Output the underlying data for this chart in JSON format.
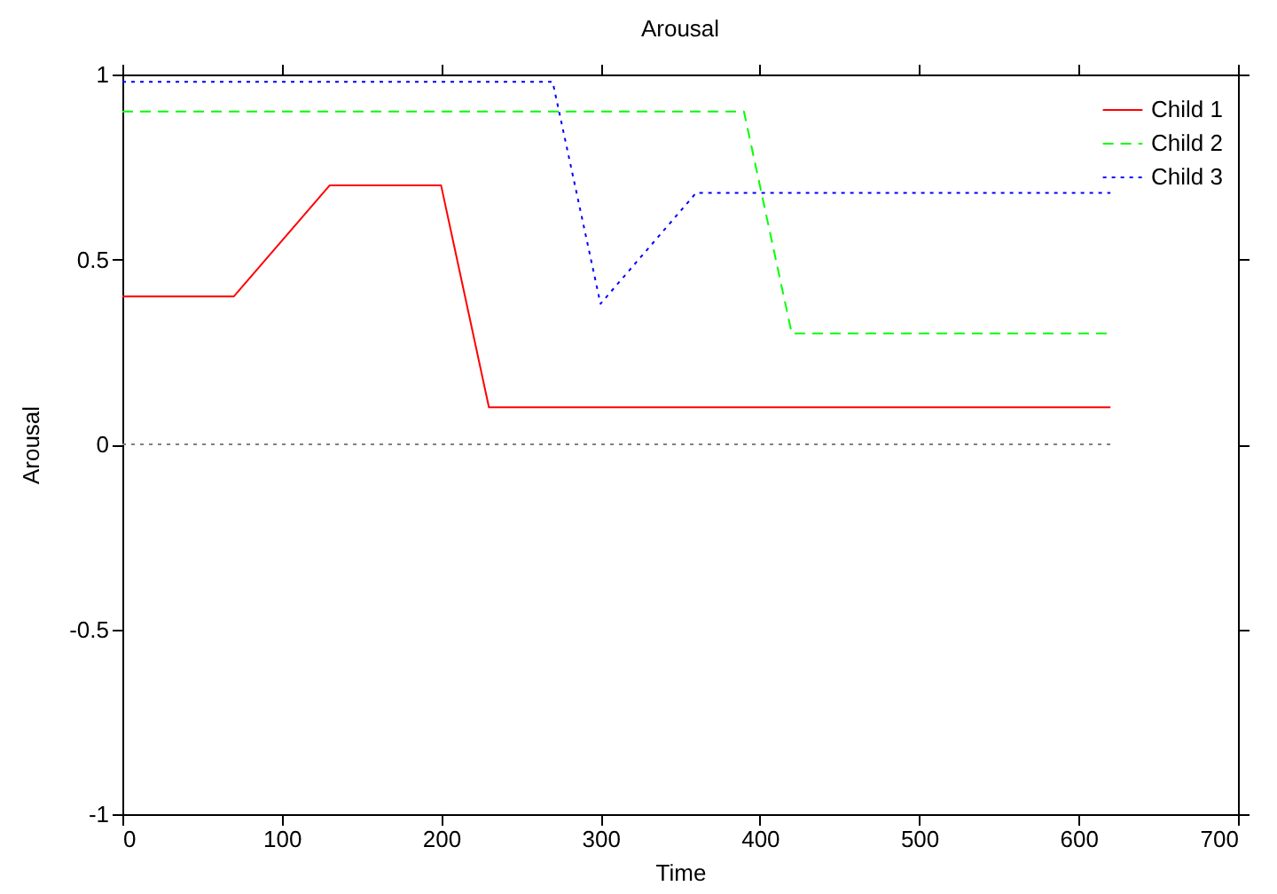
{
  "chart_data": {
    "type": "line",
    "title": "Arousal",
    "xlabel": "Time",
    "ylabel": "Arousal",
    "xlim": [
      0,
      700
    ],
    "xticks": [
      0,
      100,
      200,
      300,
      400,
      500,
      600,
      700
    ],
    "ylim": [
      -1,
      1
    ],
    "yticks": [
      -1,
      -0.5,
      0,
      0.5,
      1
    ],
    "grid": false,
    "legend": "top right",
    "series": [
      {
        "name": "Child 1",
        "color": "#ff0000",
        "line_style": "solid",
        "x": [
          0,
          70,
          130,
          200,
          230,
          620
        ],
        "values": [
          0.4,
          0.4,
          0.7,
          0.7,
          0.1,
          0.1
        ]
      },
      {
        "name": "Child 2",
        "color": "#00ff00",
        "line_style": "dashed",
        "x": [
          0,
          390,
          420,
          620
        ],
        "values": [
          0.9,
          0.9,
          0.3,
          0.3
        ]
      },
      {
        "name": "Child 3",
        "color": "#0000ff",
        "line_style": "dotted",
        "x": [
          0,
          270,
          300,
          360,
          620
        ],
        "values": [
          0.98,
          0.98,
          0.38,
          0.68,
          0.68
        ]
      },
      {
        "color": "#808080",
        "line_style": "dotted",
        "x": [
          0,
          620
        ],
        "values": [
          0,
          0
        ]
      }
    ]
  }
}
